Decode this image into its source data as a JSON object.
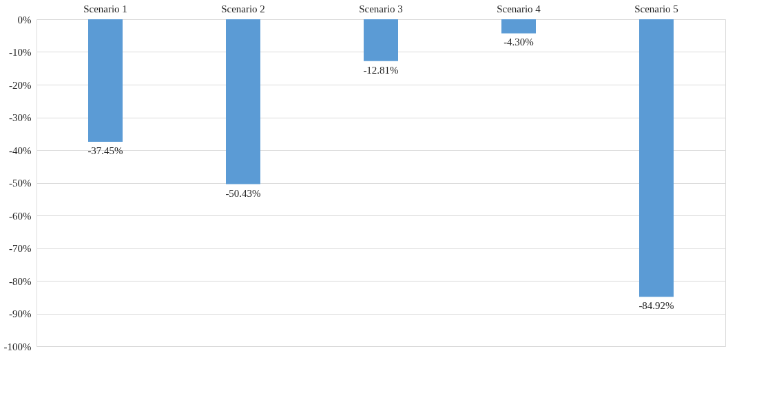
{
  "chart_data": {
    "type": "bar",
    "categories": [
      "Scenario 1",
      "Scenario 2",
      "Scenario 3",
      "Scenario 4",
      "Scenario 5"
    ],
    "values": [
      -37.45,
      -50.43,
      -12.81,
      -4.3,
      -84.92
    ],
    "value_labels": [
      "-37.45%",
      "-50.43%",
      "-12.81%",
      "-4.30%",
      "-84.92%"
    ],
    "color": "#5b9bd5",
    "ylim": [
      -100,
      0
    ],
    "yticks": [
      {
        "value": 0,
        "label": "0%"
      },
      {
        "value": -10,
        "label": "-10%"
      },
      {
        "value": -20,
        "label": "-20%"
      },
      {
        "value": -30,
        "label": "-30%"
      },
      {
        "value": -40,
        "label": "-40%"
      },
      {
        "value": -50,
        "label": "-50%"
      },
      {
        "value": -60,
        "label": "-60%"
      },
      {
        "value": -70,
        "label": "-70%"
      },
      {
        "value": -80,
        "label": "-80%"
      },
      {
        "value": -90,
        "label": "-90%"
      },
      {
        "value": -100,
        "label": "-100%"
      }
    ],
    "grid": "y"
  }
}
